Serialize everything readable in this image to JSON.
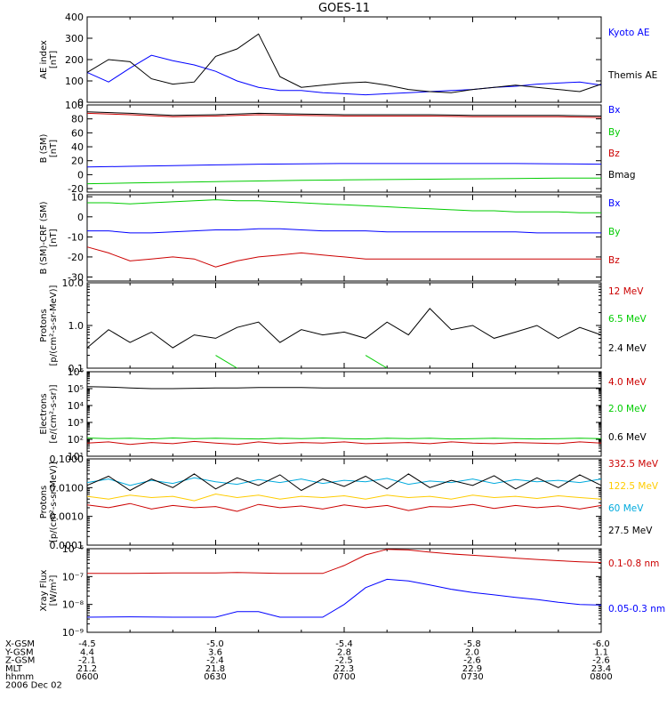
{
  "title": "GOES-11",
  "footer": {
    "rows": [
      {
        "label": "X-GSM",
        "values": [
          "-4.5",
          "-5.0",
          "-5.4",
          "-5.8",
          "-6.0"
        ]
      },
      {
        "label": "Y-GSM",
        "values": [
          "4.4",
          "3.6",
          "2.8",
          "2.0",
          "1.1"
        ]
      },
      {
        "label": "Z-GSM",
        "values": [
          "-2.1",
          "-2.4",
          "-2.5",
          "-2.6",
          "-2.6"
        ]
      },
      {
        "label": "MLT",
        "values": [
          "21.2",
          "21.8",
          "22.3",
          "22.9",
          "23.4"
        ]
      },
      {
        "label": "hhmm",
        "values": [
          "0600",
          "0630",
          "0700",
          "0730",
          "0800"
        ]
      }
    ],
    "date": "2006 Dec 02"
  },
  "chart_data": [
    {
      "id": "ae",
      "type": "line",
      "ylabel": [
        "AE index",
        "[nT]"
      ],
      "scale": "linear",
      "ylim": [
        0,
        400
      ],
      "yticks": [
        0,
        100,
        200,
        300,
        400
      ],
      "x": [
        0,
        5,
        10,
        15,
        20,
        25,
        30,
        35,
        40,
        45,
        50,
        55,
        60,
        65,
        70,
        75,
        80,
        85,
        90,
        95,
        100,
        105,
        110,
        115,
        120
      ],
      "series": [
        {
          "name": "Kyoto AE",
          "color": "#0000ff",
          "values": [
            140,
            95,
            160,
            220,
            195,
            175,
            145,
            100,
            70,
            55,
            55,
            45,
            40,
            35,
            40,
            45,
            50,
            55,
            60,
            70,
            75,
            85,
            90,
            95,
            80
          ]
        },
        {
          "name": "Themis AE",
          "color": "#000000",
          "values": [
            140,
            200,
            190,
            110,
            85,
            95,
            215,
            250,
            320,
            120,
            70,
            80,
            90,
            95,
            80,
            60,
            50,
            45,
            60,
            70,
            80,
            70,
            60,
            50,
            85
          ]
        }
      ]
    },
    {
      "id": "b_sm",
      "type": "line",
      "ylabel": [
        "B (SM)",
        "[nT]"
      ],
      "scale": "linear",
      "ylim": [
        -25,
        100
      ],
      "yticks": [
        -20,
        0,
        20,
        40,
        60,
        80,
        100
      ],
      "x": [
        0,
        10,
        20,
        30,
        40,
        50,
        60,
        70,
        80,
        90,
        100,
        110,
        120
      ],
      "series": [
        {
          "name": "Bx",
          "color": "#0000ff",
          "values": [
            11,
            12,
            13,
            14,
            15,
            15.5,
            16,
            16,
            16,
            16,
            16,
            15.5,
            15
          ]
        },
        {
          "name": "By",
          "color": "#00cc00",
          "values": [
            -13,
            -12,
            -11,
            -10,
            -9,
            -8,
            -7.5,
            -7,
            -6.5,
            -6,
            -5.5,
            -5,
            -5
          ]
        },
        {
          "name": "Bz",
          "color": "#cc0000",
          "values": [
            88,
            86,
            83,
            84,
            86,
            85,
            84,
            84,
            84,
            83,
            83,
            83,
            82
          ]
        },
        {
          "name": "Bmag",
          "color": "#000000",
          "values": [
            90,
            88,
            85,
            86,
            88,
            87,
            86,
            86,
            86,
            85,
            85,
            85,
            84
          ]
        }
      ]
    },
    {
      "id": "b_crf",
      "type": "line",
      "ylabel": [
        "B (SM)-CRF (SM)",
        "[nT]"
      ],
      "scale": "linear",
      "ylim": [
        -32,
        11
      ],
      "yticks": [
        -30,
        -20,
        -10,
        0,
        10
      ],
      "x": [
        0,
        5,
        10,
        15,
        20,
        25,
        30,
        35,
        40,
        45,
        50,
        55,
        60,
        65,
        70,
        75,
        80,
        85,
        90,
        95,
        100,
        105,
        110,
        115,
        120
      ],
      "series": [
        {
          "name": "Bx",
          "color": "#0000ff",
          "values": [
            -7,
            -7,
            -8,
            -8,
            -7.5,
            -7,
            -6.5,
            -6.5,
            -6,
            -6,
            -6.5,
            -7,
            -7,
            -7,
            -7.5,
            -7.5,
            -7.5,
            -7.5,
            -7.5,
            -7.5,
            -7.5,
            -8,
            -8,
            -8,
            -8
          ]
        },
        {
          "name": "By",
          "color": "#00cc00",
          "values": [
            7,
            7,
            6.5,
            7,
            7.5,
            8,
            8.5,
            8,
            8,
            7.5,
            7,
            6.5,
            6,
            5.5,
            5,
            4.5,
            4,
            3.5,
            3,
            3,
            2.5,
            2.5,
            2.5,
            2,
            2
          ]
        },
        {
          "name": "Bz",
          "color": "#cc0000",
          "values": [
            -15,
            -18,
            -22,
            -21,
            -20,
            -21,
            -25,
            -22,
            -20,
            -19,
            -18,
            -19,
            -20,
            -21,
            -21,
            -21,
            -21,
            -21,
            -21,
            -21,
            -21,
            -21,
            -21,
            -21,
            -21
          ]
        }
      ]
    },
    {
      "id": "protons_hi",
      "type": "line",
      "ylabel": [
        "Protons",
        "[p/(cm²-s-sr-MeV)]"
      ],
      "scale": "log",
      "ylim": [
        0.1,
        10
      ],
      "yticks": [
        0.1,
        1.0,
        10.0
      ],
      "ytick_labels": [
        "0.1",
        "1.0",
        "10.0"
      ],
      "x": [
        0,
        5,
        10,
        15,
        20,
        25,
        30,
        35,
        40,
        45,
        50,
        55,
        60,
        65,
        70,
        75,
        80,
        85,
        90,
        95,
        100,
        105,
        110,
        115,
        120
      ],
      "series": [
        {
          "name": "12 MeV",
          "color": "#cc0000",
          "values": [
            null,
            null,
            null,
            null,
            null,
            null,
            null,
            null,
            null,
            null,
            0.11,
            null,
            null,
            null,
            null,
            null,
            null,
            null,
            null,
            null,
            0.11,
            null,
            null,
            null,
            null
          ]
        },
        {
          "name": "6.5 MeV",
          "color": "#00cc00",
          "values": [
            null,
            0.2,
            null,
            0.11,
            null,
            null,
            0.2,
            0.1,
            null,
            null,
            null,
            null,
            null,
            0.2,
            0.1,
            null,
            0.15,
            null,
            0.2,
            null,
            null,
            null,
            0.11,
            null,
            0.12
          ]
        },
        {
          "name": "2.4 MeV",
          "color": "#000000",
          "values": [
            0.3,
            0.8,
            0.4,
            0.7,
            0.3,
            0.6,
            0.5,
            0.9,
            1.2,
            0.4,
            0.8,
            0.6,
            0.7,
            0.5,
            1.2,
            0.6,
            2.5,
            0.8,
            1.0,
            0.5,
            0.7,
            1.0,
            0.5,
            0.9,
            0.6
          ]
        }
      ]
    },
    {
      "id": "electrons",
      "type": "line",
      "ylabel": [
        "Electrons",
        "[e/(cm²-s-sr)]"
      ],
      "scale": "log",
      "ylim": [
        10,
        1000000
      ],
      "yticks": [
        10,
        100,
        1000,
        10000,
        100000,
        1000000
      ],
      "ytick_labels": [
        "10¹",
        "10²",
        "10³",
        "10⁴",
        "10⁵",
        "10⁶"
      ],
      "x": [
        0,
        5,
        10,
        15,
        20,
        25,
        30,
        35,
        40,
        45,
        50,
        55,
        60,
        65,
        70,
        75,
        80,
        85,
        90,
        95,
        100,
        105,
        110,
        115,
        120
      ],
      "series": [
        {
          "name": "4.0 MeV",
          "color": "#cc0000",
          "values": [
            60,
            70,
            50,
            65,
            55,
            75,
            60,
            50,
            70,
            55,
            65,
            60,
            70,
            55,
            60,
            65,
            55,
            70,
            60,
            55,
            65,
            60,
            55,
            70,
            60
          ]
        },
        {
          "name": "2.0 MeV",
          "color": "#00cc00",
          "values": [
            120,
            110,
            115,
            105,
            120,
            110,
            115,
            110,
            105,
            115,
            110,
            120,
            110,
            105,
            115,
            110,
            115,
            105,
            110,
            115,
            110,
            105,
            110,
            115,
            110
          ]
        },
        {
          "name": "0.6 MeV",
          "color": "#000000",
          "values": [
            130000,
            125000,
            110000,
            100000,
            100000,
            105000,
            110000,
            110000,
            115000,
            115000,
            115000,
            110000,
            110000,
            110000,
            110000,
            110000,
            110000,
            110000,
            110000,
            110000,
            110000,
            110000,
            110000,
            110000,
            110000
          ]
        }
      ]
    },
    {
      "id": "protons_lo",
      "type": "line",
      "ylabel": [
        "Protons",
        "[p/(cm²-s-sr-MeV)]"
      ],
      "scale": "log",
      "ylim": [
        0.0001,
        0.1
      ],
      "yticks": [
        0.0001,
        0.001,
        0.01,
        0.1
      ],
      "ytick_labels": [
        "0.0001",
        "0.0010",
        "0.0100",
        "0.1000"
      ],
      "x": [
        0,
        5,
        10,
        15,
        20,
        25,
        30,
        35,
        40,
        45,
        50,
        55,
        60,
        65,
        70,
        75,
        80,
        85,
        90,
        95,
        100,
        105,
        110,
        115,
        120
      ],
      "series": [
        {
          "name": "332.5 MeV",
          "color": "#cc0000",
          "values": [
            0.0025,
            0.002,
            0.0028,
            0.0018,
            0.0024,
            0.002,
            0.0022,
            0.0015,
            0.0026,
            0.002,
            0.0023,
            0.0018,
            0.0025,
            0.002,
            0.0024,
            0.0016,
            0.0022,
            0.0021,
            0.0026,
            0.0019,
            0.0024,
            0.002,
            0.0023,
            0.0018,
            0.0024
          ]
        },
        {
          "name": "122.5 MeV",
          "color": "#ffcc00",
          "values": [
            0.005,
            0.004,
            0.0055,
            0.0045,
            0.005,
            0.0035,
            0.006,
            0.0045,
            0.0055,
            0.004,
            0.005,
            0.0045,
            0.0052,
            0.004,
            0.0055,
            0.0045,
            0.005,
            0.004,
            0.0055,
            0.0045,
            0.005,
            0.0042,
            0.0052,
            0.0045,
            0.004
          ]
        },
        {
          "name": "60 MeV",
          "color": "#00aadd",
          "values": [
            0.015,
            0.02,
            0.012,
            0.018,
            0.014,
            0.022,
            0.016,
            0.013,
            0.019,
            0.015,
            0.02,
            0.014,
            0.018,
            0.016,
            0.021,
            0.013,
            0.017,
            0.015,
            0.02,
            0.014,
            0.019,
            0.016,
            0.018,
            0.015,
            0.02
          ]
        },
        {
          "name": "27.5 MeV",
          "color": "#000000",
          "values": [
            0.012,
            0.025,
            0.008,
            0.02,
            0.01,
            0.03,
            0.009,
            0.022,
            0.012,
            0.028,
            0.008,
            0.02,
            0.011,
            0.025,
            0.009,
            0.03,
            0.01,
            0.018,
            0.012,
            0.026,
            0.009,
            0.022,
            0.01,
            0.028,
            0.012
          ]
        }
      ]
    },
    {
      "id": "xray",
      "type": "line",
      "ylabel": [
        "Xray Flux",
        "[W/m²]"
      ],
      "scale": "log",
      "ylim": [
        1e-09,
        1e-06
      ],
      "yticks": [
        1e-09,
        1e-08,
        1e-07,
        1e-06
      ],
      "ytick_labels": [
        "10⁻⁹",
        "10⁻⁸",
        "10⁻⁷",
        "10⁻⁶"
      ],
      "x": [
        0,
        10,
        20,
        30,
        35,
        40,
        45,
        50,
        55,
        60,
        65,
        70,
        75,
        80,
        85,
        90,
        95,
        100,
        105,
        110,
        115,
        120
      ],
      "series": [
        {
          "name": "0.1-0.8 nm",
          "color": "#cc0000",
          "values": [
            1.3e-07,
            1.3e-07,
            1.35e-07,
            1.35e-07,
            1.4e-07,
            1.35e-07,
            1.3e-07,
            1.3e-07,
            1.3e-07,
            2.5e-07,
            6e-07,
            9.5e-07,
            9e-07,
            7.5e-07,
            6.5e-07,
            5.8e-07,
            5.2e-07,
            4.6e-07,
            4.1e-07,
            3.7e-07,
            3.4e-07,
            3.2e-07
          ]
        },
        {
          "name": "0.05-0.3 nm",
          "color": "#0000ff",
          "values": [
            3.5e-09,
            3.6e-09,
            3.5e-09,
            3.5e-09,
            5.5e-09,
            5.5e-09,
            3.5e-09,
            3.5e-09,
            3.5e-09,
            1e-08,
            4e-08,
            8e-08,
            7e-08,
            5e-08,
            3.5e-08,
            2.7e-08,
            2.2e-08,
            1.8e-08,
            1.5e-08,
            1.2e-08,
            1e-08,
            9.5e-09
          ]
        }
      ]
    }
  ]
}
